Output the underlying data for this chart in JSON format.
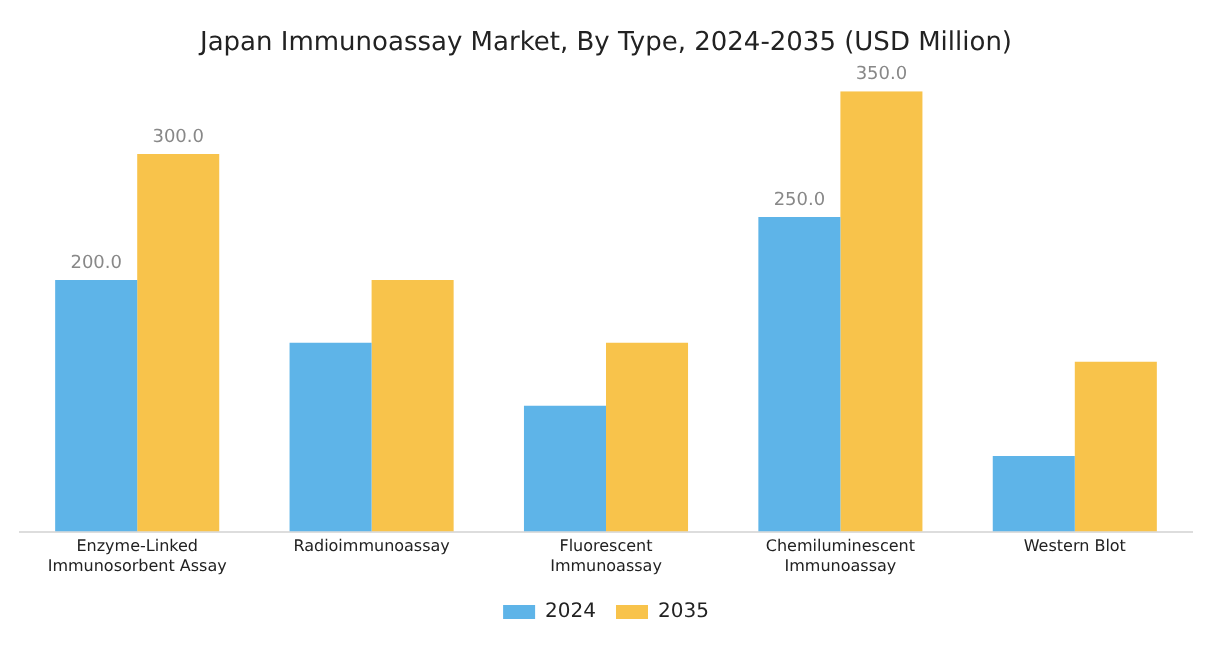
{
  "chart_data": {
    "type": "bar",
    "title": "Japan Immunoassay Market, By Type, 2024-2035 (USD Million)",
    "categories": [
      [
        "Enzyme-Linked",
        "Immunosorbent Assay"
      ],
      "Radioimmunoassay",
      [
        "Fluorescent",
        "Immunoassay"
      ],
      [
        "Chemiluminescent",
        "Immunoassay"
      ],
      "Western Blot"
    ],
    "series": [
      {
        "name": "2024",
        "color": "#5eb4e8",
        "values": [
          200,
          150,
          100,
          250,
          60
        ],
        "value_labels": [
          "200.0",
          null,
          null,
          "250.0",
          null
        ]
      },
      {
        "name": "2035",
        "color": "#f8c34b",
        "values": [
          300,
          200,
          150,
          350,
          135
        ],
        "value_labels": [
          "300.0",
          null,
          null,
          "350.0",
          null
        ]
      }
    ],
    "legend": "bottom",
    "grid": false
  }
}
